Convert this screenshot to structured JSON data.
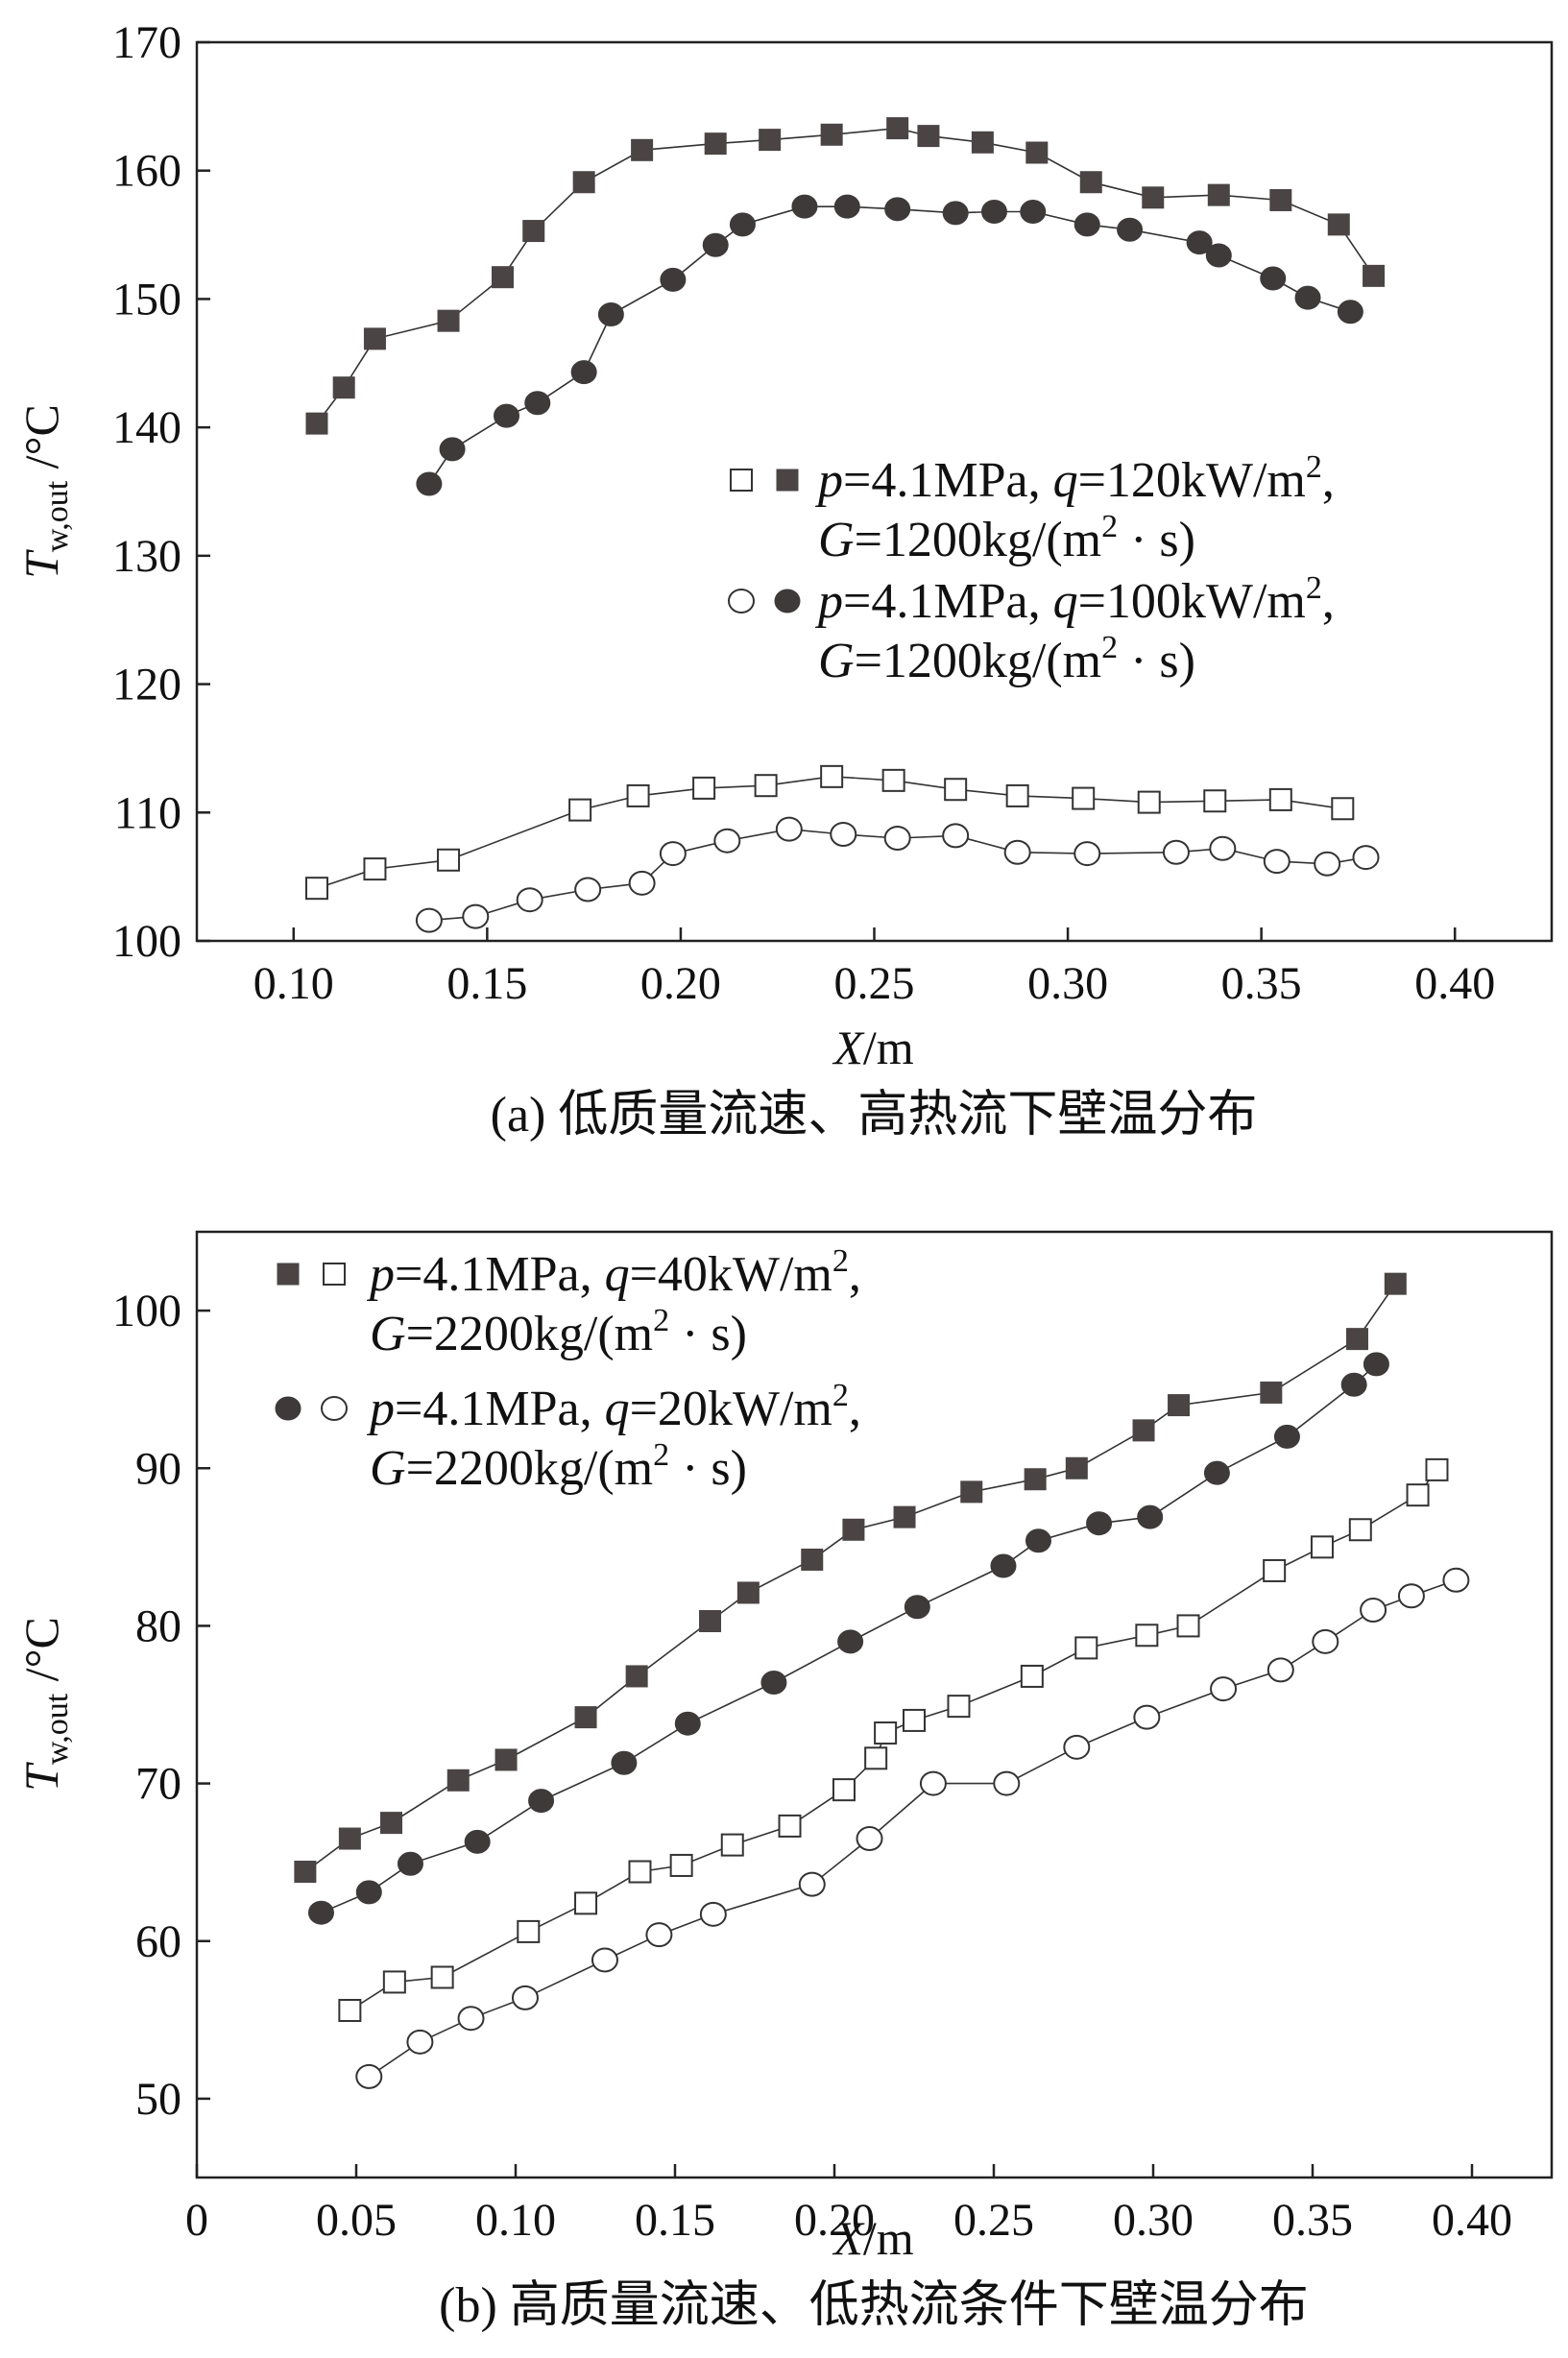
{
  "chart_data": [
    {
      "type": "line",
      "title": "",
      "caption": "(a) 低质量流速、高热流下壁温分布",
      "xlabel": "X/m",
      "ylabel": "T_w,out /°C",
      "ylabel_main": "T",
      "ylabel_sub": "w,out",
      "ylabel_unit": " /°C",
      "xlim": [
        0.075,
        0.425
      ],
      "ylim": [
        100,
        170
      ],
      "xticks": [
        "0.10",
        "0.15",
        "0.20",
        "0.25",
        "0.30",
        "0.35",
        "0.40"
      ],
      "xtick_values": [
        0.1,
        0.15,
        0.2,
        0.25,
        0.3,
        0.35,
        0.4
      ],
      "yticks": [
        "100",
        "110",
        "120",
        "130",
        "140",
        "150",
        "160",
        "170"
      ],
      "ytick_values": [
        100,
        110,
        120,
        130,
        140,
        150,
        160,
        170
      ],
      "legend": [
        {
          "markers": [
            "square-open",
            "square-filled"
          ],
          "line1_parts": [
            "p",
            "=4.1MPa, ",
            "q",
            "=120kW/m",
            "2",
            ","
          ],
          "line2_parts": [
            "G",
            "=1200kg/(m",
            "2",
            " · s)"
          ]
        },
        {
          "markers": [
            "circle-open",
            "circle-filled"
          ],
          "line1_parts": [
            "p",
            "=4.1MPa, ",
            "q",
            "=100kW/m",
            "2",
            ","
          ],
          "line2_parts": [
            "G",
            "=1200kg/(m",
            "2",
            " · s)"
          ]
        }
      ],
      "series": [
        {
          "name": "q=120kW/m2 filled squares",
          "marker": "square-filled",
          "x": [
            0.106,
            0.113,
            0.121,
            0.14,
            0.154,
            0.162,
            0.175,
            0.19,
            0.209,
            0.223,
            0.239,
            0.256,
            0.264,
            0.278,
            0.292,
            0.306,
            0.322,
            0.339,
            0.355,
            0.37,
            0.379
          ],
          "y": [
            140.3,
            143.1,
            146.9,
            148.3,
            151.7,
            155.3,
            159.1,
            161.6,
            162.1,
            162.4,
            162.8,
            163.3,
            162.7,
            162.2,
            161.4,
            159.1,
            157.9,
            158.1,
            157.7,
            155.8,
            151.8
          ]
        },
        {
          "name": "q=100kW/m2 filled circles",
          "marker": "circle-filled",
          "x": [
            0.135,
            0.141,
            0.155,
            0.163,
            0.175,
            0.182,
            0.198,
            0.209,
            0.216,
            0.232,
            0.243,
            0.256,
            0.271,
            0.281,
            0.291,
            0.305,
            0.316,
            0.334,
            0.339,
            0.353,
            0.362,
            0.373
          ],
          "y": [
            135.6,
            138.3,
            140.9,
            141.9,
            144.3,
            148.8,
            151.5,
            154.2,
            155.8,
            157.2,
            157.2,
            157.0,
            156.7,
            156.8,
            156.8,
            155.8,
            155.4,
            154.4,
            153.4,
            151.6,
            150.1,
            149.0
          ]
        },
        {
          "name": "q=120kW/m2 open squares",
          "marker": "square-open",
          "x": [
            0.106,
            0.121,
            0.14,
            0.174,
            0.189,
            0.206,
            0.222,
            0.239,
            0.255,
            0.271,
            0.287,
            0.304,
            0.321,
            0.338,
            0.355,
            0.371
          ],
          "y": [
            104.1,
            105.6,
            106.3,
            110.2,
            111.3,
            111.9,
            112.1,
            112.8,
            112.5,
            111.8,
            111.3,
            111.1,
            110.8,
            110.9,
            111.0,
            110.3
          ]
        },
        {
          "name": "q=100kW/m2 open circles",
          "marker": "circle-open",
          "x": [
            0.135,
            0.147,
            0.161,
            0.176,
            0.19,
            0.198,
            0.212,
            0.228,
            0.242,
            0.256,
            0.271,
            0.287,
            0.305,
            0.328,
            0.34,
            0.354,
            0.367,
            0.377
          ],
          "y": [
            101.6,
            101.9,
            103.2,
            104.0,
            104.5,
            106.8,
            107.8,
            108.7,
            108.3,
            108.0,
            108.2,
            106.9,
            106.8,
            106.9,
            107.2,
            106.2,
            106.0,
            106.5
          ]
        }
      ]
    },
    {
      "type": "line",
      "title": "",
      "caption": "(b) 高质量流速、低热流条件下壁温分布",
      "xlabel": "X/m",
      "ylabel": "T_w,out /°C",
      "ylabel_main": "T",
      "ylabel_sub": "w,out",
      "ylabel_unit": " /°C",
      "xlim": [
        0.0,
        0.425
      ],
      "ylim": [
        45,
        105
      ],
      "xticks": [
        "0",
        "0.05",
        "0.10",
        "0.15",
        "0.20",
        "0.25",
        "0.30",
        "0.35",
        "0.40"
      ],
      "xtick_values": [
        0.0,
        0.05,
        0.1,
        0.15,
        0.2,
        0.25,
        0.3,
        0.35,
        0.4
      ],
      "yticks": [
        "50",
        "60",
        "70",
        "80",
        "90",
        "100"
      ],
      "ytick_values": [
        50,
        60,
        70,
        80,
        90,
        100
      ],
      "legend": [
        {
          "markers": [
            "square-filled",
            "square-open"
          ],
          "line1_parts": [
            "p",
            "=4.1MPa, ",
            "q",
            "=40kW/m",
            "2",
            ","
          ],
          "line2_parts": [
            "G",
            "=2200kg/(m",
            "2",
            " · s)"
          ]
        },
        {
          "markers": [
            "circle-filled",
            "circle-open"
          ],
          "line1_parts": [
            "p",
            "=4.1MPa, ",
            "q",
            "=20kW/m",
            "2",
            ","
          ],
          "line2_parts": [
            "G",
            "=2200kg/(m",
            "2",
            " · s)"
          ]
        }
      ],
      "series": [
        {
          "name": "q=40kW/m2 filled squares",
          "marker": "square-filled",
          "x": [
            0.034,
            0.048,
            0.061,
            0.082,
            0.097,
            0.122,
            0.138,
            0.161,
            0.173,
            0.193,
            0.206,
            0.222,
            0.243,
            0.263,
            0.276,
            0.297,
            0.308,
            0.337,
            0.364,
            0.376
          ],
          "y": [
            64.4,
            66.5,
            67.5,
            70.2,
            71.5,
            74.2,
            76.8,
            80.3,
            82.1,
            84.2,
            86.1,
            86.9,
            88.5,
            89.3,
            90.0,
            92.4,
            94.0,
            94.8,
            98.2,
            101.7
          ],
          "extra_x": [
            0.376
          ],
          "extra_y": [
            101.7
          ]
        },
        {
          "name": "q=20kW/m2 filled circles",
          "marker": "circle-filled",
          "x": [
            0.039,
            0.054,
            0.067,
            0.088,
            0.108,
            0.134,
            0.154,
            0.181,
            0.205,
            0.226,
            0.253,
            0.264,
            0.283,
            0.299,
            0.32,
            0.342,
            0.363,
            0.37
          ],
          "y": [
            61.8,
            63.1,
            64.9,
            66.3,
            68.9,
            71.3,
            73.8,
            76.4,
            79.0,
            81.2,
            83.8,
            85.4,
            86.5,
            86.9,
            89.7,
            92.0,
            95.3,
            96.6
          ]
        },
        {
          "name": "q=40kW/m2 open squares",
          "marker": "square-open",
          "x": [
            0.048,
            0.062,
            0.077,
            0.104,
            0.122,
            0.139,
            0.152,
            0.168,
            0.186,
            0.203,
            0.213,
            0.216,
            0.225,
            0.239,
            0.262,
            0.279,
            0.298,
            0.311,
            0.338,
            0.353,
            0.365,
            0.383,
            0.389
          ],
          "y": [
            55.6,
            57.4,
            57.7,
            60.6,
            62.4,
            64.4,
            64.8,
            66.1,
            67.3,
            69.6,
            71.6,
            73.2,
            74.0,
            74.9,
            76.8,
            78.6,
            79.4,
            80.0,
            83.5,
            85.0,
            86.1,
            88.3,
            89.9
          ]
        },
        {
          "name": "q=20kW/m2 open circles",
          "marker": "circle-open",
          "x": [
            0.054,
            0.07,
            0.086,
            0.103,
            0.128,
            0.145,
            0.162,
            0.193,
            0.211,
            0.231,
            0.254,
            0.276,
            0.298,
            0.322,
            0.34,
            0.354,
            0.369,
            0.381,
            0.395
          ],
          "y": [
            51.4,
            53.6,
            55.1,
            56.4,
            58.8,
            60.4,
            61.7,
            63.6,
            66.5,
            70.0,
            70.0,
            72.3,
            74.2,
            76.0,
            77.2,
            79.0,
            81.0,
            81.9,
            82.9
          ]
        }
      ]
    }
  ]
}
